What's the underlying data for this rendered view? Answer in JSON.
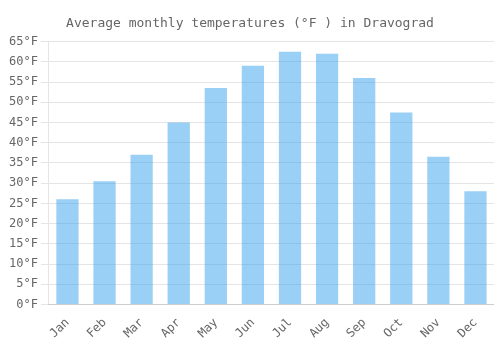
{
  "chart_data": {
    "type": "bar",
    "title": "Average monthly temperatures (°F ) in Dravograd",
    "categories": [
      "Jan",
      "Feb",
      "Mar",
      "Apr",
      "May",
      "Jun",
      "Jul",
      "Aug",
      "Sep",
      "Oct",
      "Nov",
      "Dec"
    ],
    "values": [
      26,
      30.5,
      37,
      45,
      53.5,
      59,
      62.5,
      62,
      56,
      47.5,
      36.5,
      28
    ],
    "ylim": [
      0,
      65
    ],
    "yticks": [
      {
        "value": 0,
        "label": "0°F"
      },
      {
        "value": 5,
        "label": "5°F"
      },
      {
        "value": 10,
        "label": "10°F"
      },
      {
        "value": 15,
        "label": "15°F"
      },
      {
        "value": 20,
        "label": "20°F"
      },
      {
        "value": 25,
        "label": "25°F"
      },
      {
        "value": 30,
        "label": "30°F"
      },
      {
        "value": 35,
        "label": "35°F"
      },
      {
        "value": 40,
        "label": "40°F"
      },
      {
        "value": 45,
        "label": "45°F"
      },
      {
        "value": 50,
        "label": "50°F"
      },
      {
        "value": 55,
        "label": "55°F"
      },
      {
        "value": 60,
        "label": "60°F"
      },
      {
        "value": 65,
        "label": "65°F"
      }
    ],
    "grid": true
  }
}
